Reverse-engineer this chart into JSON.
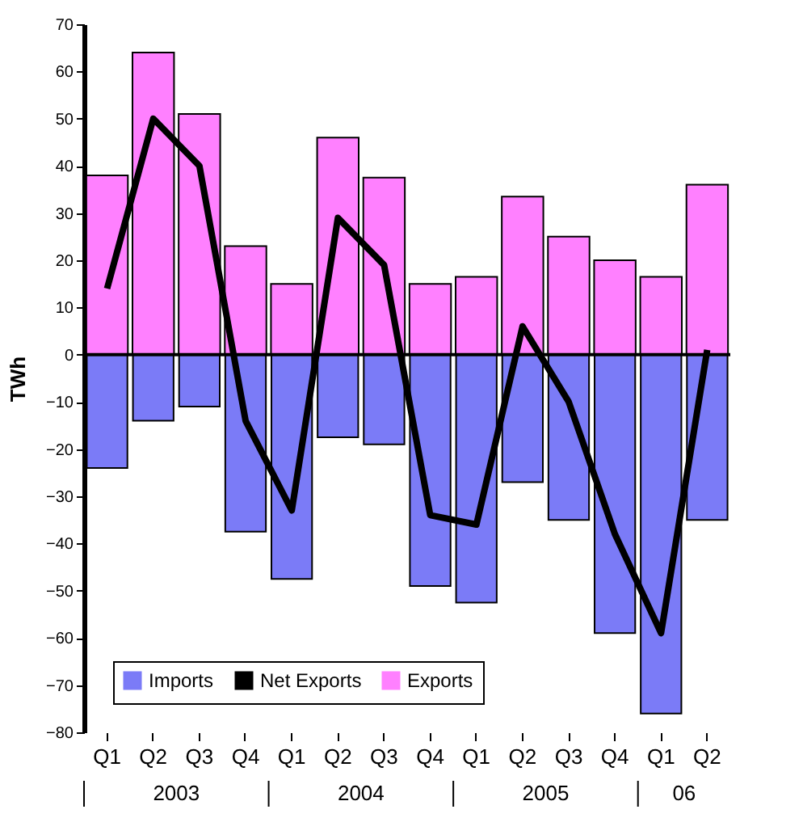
{
  "chart_data": {
    "type": "bar",
    "ylabel": "TWh",
    "categories": [
      "Q1",
      "Q2",
      "Q3",
      "Q4",
      "Q1",
      "Q2",
      "Q3",
      "Q4",
      "Q1",
      "Q2",
      "Q3",
      "Q4",
      "Q1",
      "Q2"
    ],
    "series": [
      {
        "name": "Imports",
        "color": "#7b7bf7",
        "values": [
          -24,
          -14,
          -11,
          -37.5,
          -47.5,
          -17.5,
          -19,
          -49,
          -52.5,
          -27,
          -35,
          -59,
          -76,
          -35
        ]
      },
      {
        "name": "Net Exports",
        "type": "line",
        "color": "#000000",
        "values": [
          14,
          50,
          40,
          -14,
          -33,
          29,
          19,
          -34,
          -36,
          6,
          -10,
          -38,
          -59,
          1
        ]
      },
      {
        "name": "Exports",
        "color": "#ff80ff",
        "values": [
          38,
          64,
          51,
          23,
          15,
          46,
          37.5,
          15,
          16.5,
          33.5,
          25,
          20,
          16.5,
          36
        ]
      }
    ],
    "ylim": [
      -80,
      70
    ],
    "yticks": [
      -80,
      -70,
      -60,
      -50,
      -40,
      -30,
      -20,
      -10,
      0,
      10,
      20,
      30,
      40,
      50,
      60,
      70
    ],
    "ref_lines": [
      {
        "axis": "y",
        "value": 0,
        "color": "#000000"
      }
    ],
    "annotations": [
      "2003",
      "2004",
      "2005",
      "06"
    ],
    "stacked": true,
    "grid": false,
    "legend": "bottom left"
  }
}
